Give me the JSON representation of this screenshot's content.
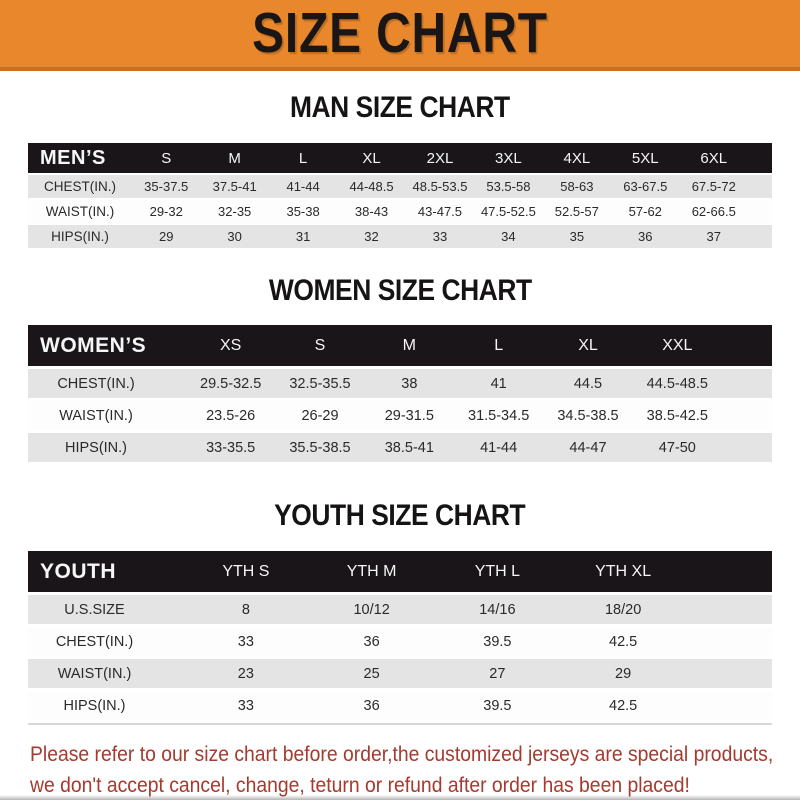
{
  "banner": {
    "title": "SIZE CHART"
  },
  "sections": [
    {
      "id": "man",
      "title": "MAN SIZE CHART",
      "header_label": "MEN’S",
      "columns": [
        "S",
        "M",
        "L",
        "XL",
        "2XL",
        "3XL",
        "4XL",
        "5XL",
        "6XL"
      ],
      "rows": [
        {
          "label": "CHEST(IN.)",
          "values": [
            "35-37.5",
            "37.5-41",
            "41-44",
            "44-48.5",
            "48.5-53.5",
            "53.5-58",
            "58-63",
            "63-67.5",
            "67.5-72"
          ]
        },
        {
          "label": "WAIST(IN.)",
          "values": [
            "29-32",
            "32-35",
            "35-38",
            "38-43",
            "43-47.5",
            "47.5-52.5",
            "52.5-57",
            "57-62",
            "62-66.5"
          ]
        },
        {
          "label": "HIPS(IN.)",
          "values": [
            "29",
            "30",
            "31",
            "32",
            "33",
            "34",
            "35",
            "36",
            "37"
          ]
        }
      ]
    },
    {
      "id": "women",
      "title": "WOMEN SIZE CHART",
      "header_label": "WOMEN’S",
      "columns": [
        "XS",
        "S",
        "M",
        "L",
        "XL",
        "XXL"
      ],
      "rows": [
        {
          "label": "CHEST(IN.)",
          "values": [
            "29.5-32.5",
            "32.5-35.5",
            "38",
            "41",
            "44.5",
            "44.5-48.5"
          ]
        },
        {
          "label": "WAIST(IN.)",
          "values": [
            "23.5-26",
            "26-29",
            "29-31.5",
            "31.5-34.5",
            "34.5-38.5",
            "38.5-42.5"
          ]
        },
        {
          "label": "HIPS(IN.)",
          "values": [
            "33-35.5",
            "35.5-38.5",
            "38.5-41",
            "41-44",
            "44-47",
            "47-50"
          ]
        }
      ]
    },
    {
      "id": "youth",
      "title": "YOUTH SIZE CHART",
      "header_label": "YOUTH",
      "columns": [
        "YTH S",
        "YTH M",
        "YTH L",
        "YTH XL"
      ],
      "rows": [
        {
          "label": "U.S.SIZE",
          "values": [
            "8",
            "10/12",
            "14/16",
            "18/20"
          ]
        },
        {
          "label": "CHEST(IN.)",
          "values": [
            "33",
            "36",
            "39.5",
            "42.5"
          ]
        },
        {
          "label": "WAIST(IN.)",
          "values": [
            "23",
            "25",
            "27",
            "29"
          ]
        },
        {
          "label": "HIPS(IN.)",
          "values": [
            "33",
            "36",
            "39.5",
            "42.5"
          ]
        }
      ]
    }
  ],
  "disclaimer": {
    "line1": "Please refer to our size chart before order,the customized jerseys are special products,",
    "line2": "we don't accept cancel, change, teturn or refund after order has been placed!"
  },
  "colors": {
    "banner_bg": "#E8872C",
    "banner_border": "#C96F1D",
    "header_bar": "#1A1518",
    "row_gray": "#E4E4E4",
    "row_white": "#FDFDFD",
    "disclaimer_red": "#A53A2E",
    "title_black": "#151313"
  }
}
